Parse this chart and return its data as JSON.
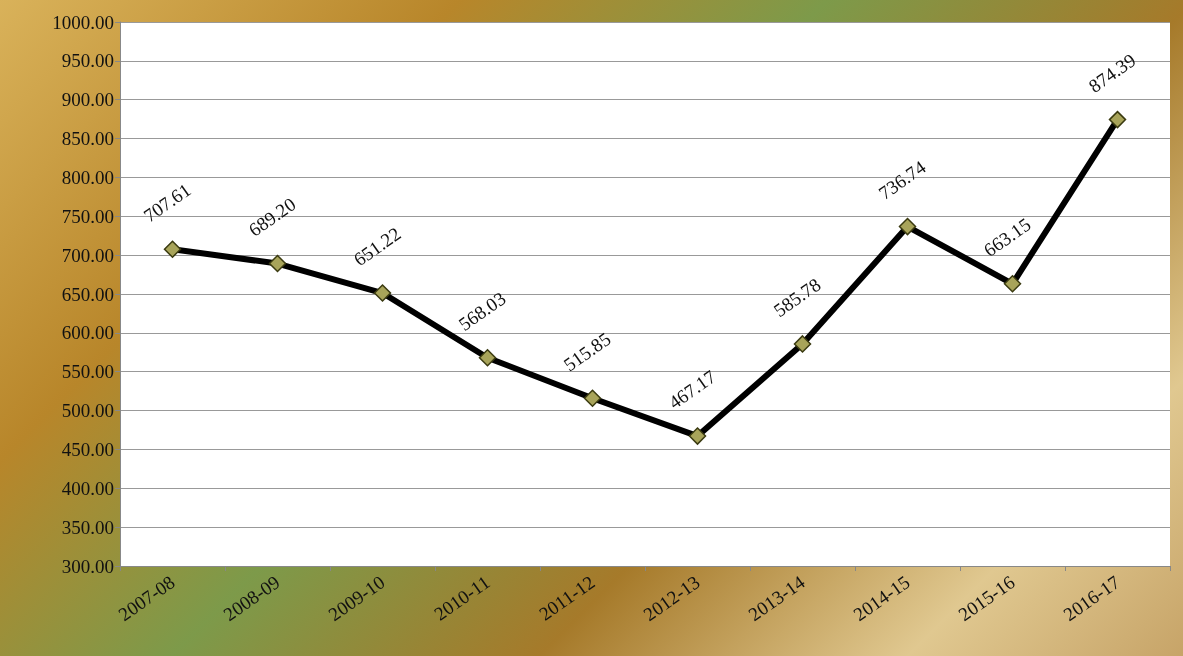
{
  "chart_data": {
    "type": "line",
    "categories": [
      "2007-08",
      "2008-09",
      "2009-10",
      "2010-11",
      "2011-12",
      "2012-13",
      "2013-14",
      "2014-15",
      "2015-16",
      "2016-17"
    ],
    "series": [
      {
        "color": "#000000",
        "values": [
          707.61,
          689.2,
          651.22,
          568.03,
          515.85,
          467.17,
          585.78,
          736.74,
          663.15,
          874.39
        ],
        "value_labels": [
          "707.61",
          "689.20",
          "651.22",
          "568.03",
          "515.85",
          "467.17",
          "585.78",
          "736.74",
          "663.15",
          "874.39"
        ]
      }
    ],
    "ylim": [
      300,
      1000
    ],
    "yticks": [
      {
        "value": 300,
        "label": "300.00"
      },
      {
        "value": 350,
        "label": "350.00"
      },
      {
        "value": 400,
        "label": "400.00"
      },
      {
        "value": 450,
        "label": "450.00"
      },
      {
        "value": 500,
        "label": "500.00"
      },
      {
        "value": 550,
        "label": "550.00"
      },
      {
        "value": 600,
        "label": "600.00"
      },
      {
        "value": 650,
        "label": "650.00"
      },
      {
        "value": 700,
        "label": "700.00"
      },
      {
        "value": 750,
        "label": "750.00"
      },
      {
        "value": 800,
        "label": "800.00"
      },
      {
        "value": 850,
        "label": "850.00"
      },
      {
        "value": 900,
        "label": "900.00"
      },
      {
        "value": 950,
        "label": "950.00"
      },
      {
        "value": 1000,
        "label": "1000.00"
      }
    ],
    "grid": "y",
    "marker": "diamond",
    "line_style": "solid"
  }
}
